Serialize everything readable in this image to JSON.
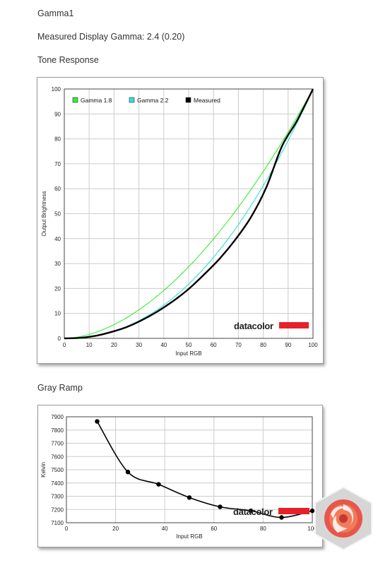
{
  "page": {
    "title": "Gamma1",
    "measured_gamma": "Measured Display Gamma: 2.4 (0.20)",
    "tone_heading": "Tone Response",
    "gray_heading": "Gray Ramp"
  },
  "watermark": "datacolor",
  "colors": {
    "gamma18": "#33ee33",
    "gamma22": "#33dddd",
    "measured": "#000000",
    "brand_red": "#e8202a",
    "grid": "#cccccc"
  },
  "chart_data": [
    {
      "type": "line",
      "xlabel": "Input RGB",
      "ylabel": "Output Brightness",
      "xlim": [
        0,
        100
      ],
      "ylim": [
        0,
        100
      ],
      "xticks": [
        0,
        10,
        20,
        30,
        40,
        50,
        60,
        70,
        80,
        90,
        100
      ],
      "yticks": [
        0,
        10,
        20,
        30,
        40,
        50,
        60,
        70,
        80,
        90,
        100
      ],
      "grid": true,
      "legend_position": "top-left",
      "series": [
        {
          "name": "Gamma 1.8",
          "color": "#33ee33",
          "gamma": 1.8,
          "x": [
            0,
            10,
            20,
            30,
            40,
            50,
            60,
            70,
            80,
            90,
            100
          ],
          "y": [
            0,
            1.6,
            5.5,
            11.5,
            19.2,
            28.7,
            39.9,
            52.6,
            66.9,
            82.7,
            100
          ]
        },
        {
          "name": "Gamma 2.2",
          "color": "#33dddd",
          "gamma": 2.2,
          "x": [
            0,
            10,
            20,
            30,
            40,
            50,
            60,
            70,
            80,
            90,
            100
          ],
          "y": [
            0,
            0.6,
            2.9,
            7.1,
            13.3,
            21.8,
            32.5,
            45.6,
            61.2,
            79.3,
            100
          ]
        },
        {
          "name": "Measured",
          "color": "#000000",
          "x": [
            0,
            6,
            12.5,
            18.7,
            25,
            31.2,
            37.5,
            43.7,
            50,
            56.2,
            62.5,
            68.7,
            75,
            81.2,
            87.5,
            93.7,
            100
          ],
          "y": [
            0,
            0.2,
            1.0,
            2.5,
            4.5,
            7.3,
            10.8,
            14.9,
            19.8,
            25.6,
            32.0,
            39.5,
            48.5,
            60.5,
            77.0,
            87.5,
            100
          ]
        }
      ]
    },
    {
      "type": "line",
      "xlabel": "Input RGB",
      "ylabel": "Kelvin",
      "xlim": [
        0,
        100
      ],
      "ylim": [
        7100,
        7900
      ],
      "xticks": [
        0,
        20,
        40,
        60,
        80,
        100
      ],
      "yticks": [
        7100,
        7200,
        7300,
        7400,
        7500,
        7600,
        7700,
        7800,
        7900
      ],
      "grid": true,
      "series": [
        {
          "color": "#000000",
          "x": [
            12.5,
            25,
            37.5,
            50,
            62.5,
            75,
            87.5,
            100
          ],
          "y": [
            7865,
            7483,
            7390,
            7290,
            7220,
            7190,
            7140,
            7190
          ]
        }
      ]
    }
  ]
}
